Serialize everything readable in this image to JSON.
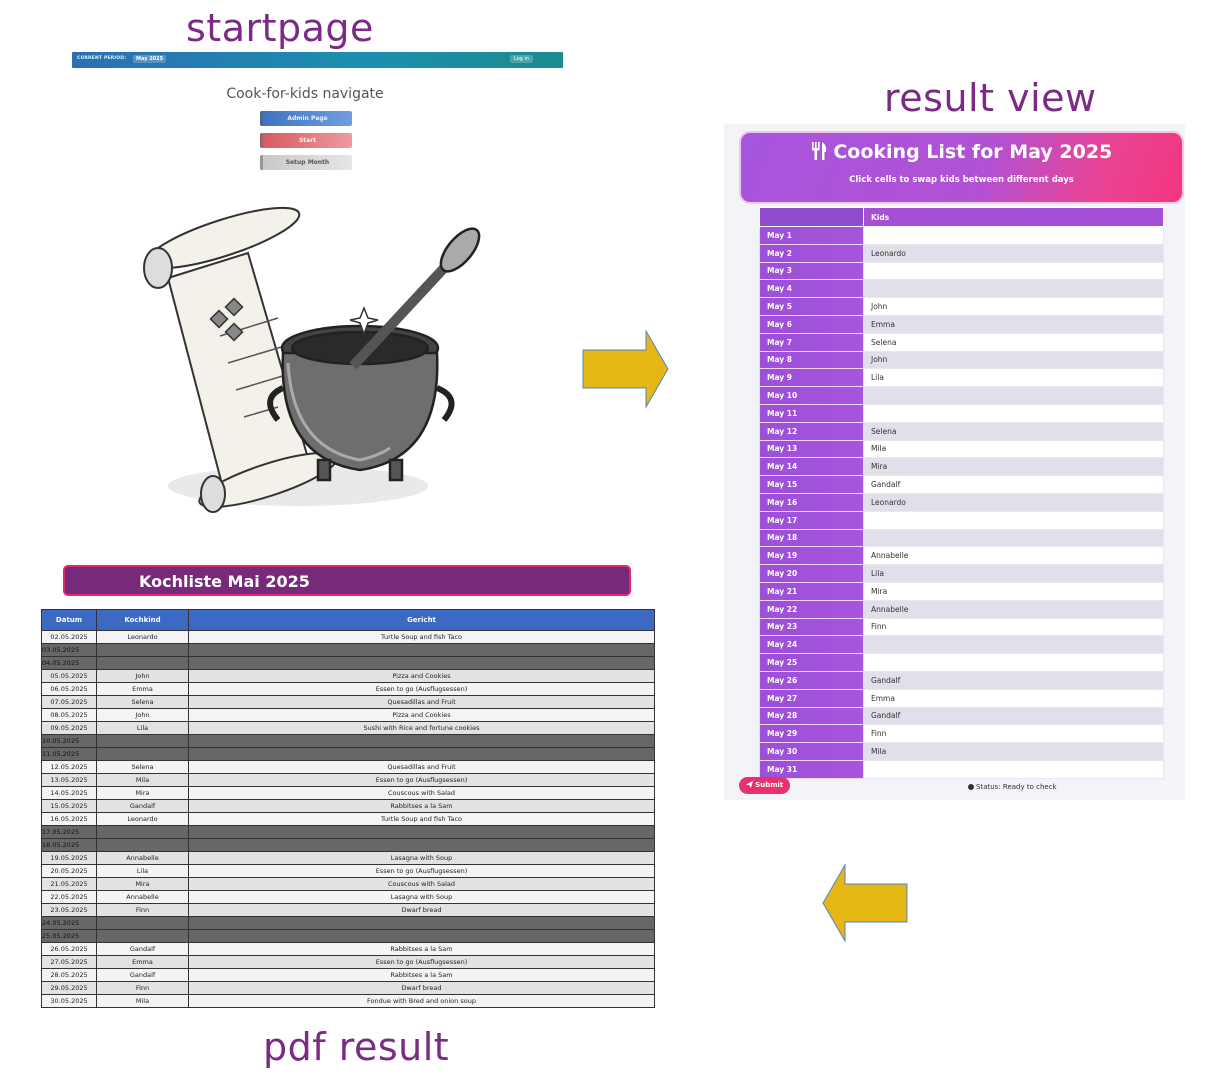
{
  "labels": {
    "startpage": "startpage",
    "result_view": "result view",
    "pdf_result": "pdf result"
  },
  "startpage": {
    "period_label": "CURRENT PERIOD:",
    "period_value": "May 2025",
    "login": "Log in",
    "title": "Cook-for-kids navigate",
    "buttons": {
      "admin": "Admin Page",
      "start": "Start",
      "setup": "Setup Month"
    }
  },
  "pdf": {
    "title": "Kochliste Mai 2025",
    "headers": [
      "Datum",
      "Kochkind",
      "Gericht"
    ],
    "rows": [
      {
        "date": "02.05.2025",
        "kid": "Leonardo",
        "dish": "Turtle Soup and fish Taco",
        "weekend": false
      },
      {
        "date": "03.05.2025",
        "kid": "",
        "dish": "",
        "weekend": true
      },
      {
        "date": "04.05.2025",
        "kid": "",
        "dish": "",
        "weekend": true
      },
      {
        "date": "05.05.2025",
        "kid": "John",
        "dish": "Pizza and Cookies",
        "weekend": false
      },
      {
        "date": "06.05.2025",
        "kid": "Emma",
        "dish": "Essen to go (Ausflugsessen)",
        "weekend": false
      },
      {
        "date": "07.05.2025",
        "kid": "Selena",
        "dish": "Quesadillas and Fruit",
        "weekend": false
      },
      {
        "date": "08.05.2025",
        "kid": "John",
        "dish": "Pizza and Cookies",
        "weekend": false
      },
      {
        "date": "09.05.2025",
        "kid": "Lila",
        "dish": "Sushi with Rice and fortune cookies",
        "weekend": false
      },
      {
        "date": "10.05.2025",
        "kid": "",
        "dish": "",
        "weekend": true
      },
      {
        "date": "11.05.2025",
        "kid": "",
        "dish": "",
        "weekend": true
      },
      {
        "date": "12.05.2025",
        "kid": "Selena",
        "dish": "Quesadillas and Fruit",
        "weekend": false
      },
      {
        "date": "13.05.2025",
        "kid": "Mila",
        "dish": "Essen to go (Ausflugsessen)",
        "weekend": false
      },
      {
        "date": "14.05.2025",
        "kid": "Mira",
        "dish": "Couscous with Salad",
        "weekend": false
      },
      {
        "date": "15.05.2025",
        "kid": "Gandalf",
        "dish": "Rabbitses a la Sam",
        "weekend": false
      },
      {
        "date": "16.05.2025",
        "kid": "Leonardo",
        "dish": "Turtle Soup and fish Taco",
        "weekend": false
      },
      {
        "date": "17.05.2025",
        "kid": "",
        "dish": "",
        "weekend": true
      },
      {
        "date": "18.05.2025",
        "kid": "",
        "dish": "",
        "weekend": true
      },
      {
        "date": "19.05.2025",
        "kid": "Annabelle",
        "dish": "Lasagna with Soup",
        "weekend": false
      },
      {
        "date": "20.05.2025",
        "kid": "Lila",
        "dish": "Essen to go (Ausflugsessen)",
        "weekend": false
      },
      {
        "date": "21.05.2025",
        "kid": "Mira",
        "dish": "Couscous with Salad",
        "weekend": false
      },
      {
        "date": "22.05.2025",
        "kid": "Annabelle",
        "dish": "Lasagna with Soup",
        "weekend": false
      },
      {
        "date": "23.05.2025",
        "kid": "Finn",
        "dish": "Dwarf bread",
        "weekend": false
      },
      {
        "date": "24.05.2025",
        "kid": "",
        "dish": "",
        "weekend": true
      },
      {
        "date": "25.05.2025",
        "kid": "",
        "dish": "",
        "weekend": true
      },
      {
        "date": "26.05.2025",
        "kid": "Gandalf",
        "dish": "Rabbitses a la Sam",
        "weekend": false
      },
      {
        "date": "27.05.2025",
        "kid": "Emma",
        "dish": "Essen to go (Ausflugsessen)",
        "weekend": false
      },
      {
        "date": "28.05.2025",
        "kid": "Gandalf",
        "dish": "Rabbitses a la Sam",
        "weekend": false
      },
      {
        "date": "29.05.2025",
        "kid": "Finn",
        "dish": "Dwarf bread",
        "weekend": false
      },
      {
        "date": "30.05.2025",
        "kid": "Mila",
        "dish": "Fondue with Bred and onion soup",
        "weekend": false
      }
    ]
  },
  "result": {
    "title": "Cooking List for May 2025",
    "subtitle": "Click cells to swap kids between different days",
    "col_header": "Kids",
    "rows": [
      {
        "day": "May 1",
        "kid": ""
      },
      {
        "day": "May 2",
        "kid": "Leonardo"
      },
      {
        "day": "May 3",
        "kid": ""
      },
      {
        "day": "May 4",
        "kid": ""
      },
      {
        "day": "May 5",
        "kid": "John"
      },
      {
        "day": "May 6",
        "kid": "Emma"
      },
      {
        "day": "May 7",
        "kid": "Selena"
      },
      {
        "day": "May 8",
        "kid": "John"
      },
      {
        "day": "May 9",
        "kid": "Lila"
      },
      {
        "day": "May 10",
        "kid": ""
      },
      {
        "day": "May 11",
        "kid": ""
      },
      {
        "day": "May 12",
        "kid": "Selena"
      },
      {
        "day": "May 13",
        "kid": "Mila"
      },
      {
        "day": "May 14",
        "kid": "Mira"
      },
      {
        "day": "May 15",
        "kid": "Gandalf"
      },
      {
        "day": "May 16",
        "kid": "Leonardo"
      },
      {
        "day": "May 17",
        "kid": ""
      },
      {
        "day": "May 18",
        "kid": ""
      },
      {
        "day": "May 19",
        "kid": "Annabelle"
      },
      {
        "day": "May 20",
        "kid": "Lila"
      },
      {
        "day": "May 21",
        "kid": "Mira"
      },
      {
        "day": "May 22",
        "kid": "Annabelle"
      },
      {
        "day": "May 23",
        "kid": "Finn"
      },
      {
        "day": "May 24",
        "kid": ""
      },
      {
        "day": "May 25",
        "kid": ""
      },
      {
        "day": "May 26",
        "kid": "Gandalf"
      },
      {
        "day": "May 27",
        "kid": "Emma"
      },
      {
        "day": "May 28",
        "kid": "Gandalf"
      },
      {
        "day": "May 29",
        "kid": "Finn"
      },
      {
        "day": "May 30",
        "kid": "Mila"
      },
      {
        "day": "May 31",
        "kid": ""
      }
    ],
    "submit": "Submit",
    "status": "Status: Ready to check"
  },
  "colors": {
    "heading": "#7b2a86",
    "arrow": "#e6b614",
    "pdf_title_bg": "#77297a",
    "pdf_header": "#3b69c4",
    "accent": "#a655de"
  },
  "icons": [
    "fork-knife-icon",
    "send-icon",
    "right-arrow",
    "left-arrow"
  ]
}
